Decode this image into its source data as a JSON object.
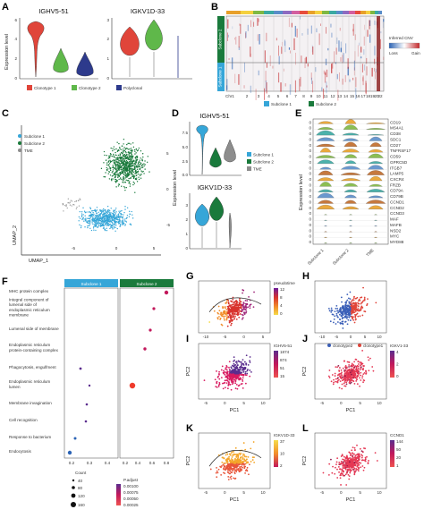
{
  "figure": {
    "panel_labels": [
      "A",
      "B",
      "C",
      "D",
      "E",
      "F",
      "G",
      "H",
      "I",
      "J",
      "K",
      "L"
    ],
    "panelA": {
      "genes": [
        "IGHV5-51",
        "IGKV1D-33"
      ],
      "ylabel": "Expression level",
      "yticks_left": [
        "0",
        "2",
        "4",
        "6"
      ],
      "yticks_right": [
        "0",
        "1",
        "2",
        "3"
      ],
      "legend": [
        "Clonotype 1",
        "Clonotype 2",
        "Polyclonal"
      ],
      "colors": {
        "clonotype1": "#e0453a",
        "clonotype2": "#5fb84a",
        "polyclonal": "#2d3a8c"
      }
    },
    "panelB": {
      "row_labels": [
        "Subclone 2",
        "Subclone 1"
      ],
      "x_label": "Chr1",
      "chromosomes": [
        "2",
        "3",
        "4",
        "5",
        "6",
        "7",
        "8",
        "9",
        "10",
        "11",
        "12",
        "13",
        "14",
        "15",
        "16",
        "17",
        "18",
        "19",
        "20",
        "22"
      ],
      "legend_title": "Inferred CNV",
      "legend_loss": "Loss",
      "legend_gain": "Gain",
      "bottom_legend": [
        "Subclone 1",
        "Subclone 2"
      ],
      "colors": {
        "subclone1": "#36a6d8",
        "subclone2": "#1a7a3c"
      }
    },
    "panelC": {
      "legend": [
        "Subclone 1",
        "Subclone 2",
        "TME"
      ],
      "xlabel": "UMAP_1",
      "ylabel": "UMAP_2",
      "xticks": [
        "-5",
        "0",
        "5"
      ],
      "yticks": [
        "5",
        "0",
        "-5"
      ]
    },
    "panelD": {
      "genes": [
        "IGHV5-51",
        "IGKV1D-33"
      ],
      "ylabel": "Expression level",
      "yticks_top": [
        "0.0",
        "2.5",
        "5.0",
        "7.5"
      ],
      "yticks_bottom": [
        "0",
        "1",
        "2",
        "3"
      ],
      "legend": [
        "Subclone 1",
        "Subclone 2",
        "TME"
      ],
      "colors": {
        "subclone1": "#36a6d8",
        "subclone2": "#1a7a3c",
        "tme": "#8d8d8d"
      }
    },
    "panelE": {
      "genes": [
        "CD19",
        "MS4A1",
        "CD38",
        "SDC1",
        "CD27",
        "TNFRSF17",
        "CD59",
        "GPRC5D",
        "ITGB7",
        "LAMP5",
        "CXCR4",
        "FRZB",
        "CD79A",
        "CD79B",
        "CCND1",
        "CCND2",
        "CCND3",
        "MAF",
        "MAFB",
        "NSD2",
        "MYC",
        "MYD88"
      ],
      "ylabel": "Expression level",
      "xlabels": [
        "Subclone 1",
        "Subclone 2",
        "TME"
      ],
      "colors": [
        "#e8a02a",
        "#7fb842",
        "#3aa9a3",
        "#5a8dc9",
        "#c06b2a"
      ]
    },
    "panelF": {
      "headers": [
        "Subclone 1",
        "Subclone 2"
      ],
      "terms": [
        "MHC protein complex",
        "Integral component of lumenal side of endoplasmic reticulum membrane",
        "Lumenal side of membrane",
        "Endoplasmic reticulum protein-containing complex",
        "Phagocytosis, engulfment",
        "Endoplasmic reticulum lumen",
        "Membrane invagination",
        "Cell recognition",
        "Response to bacterium",
        "Endocytosis"
      ],
      "xticks1": [
        "0.2",
        "0.3",
        "0.4"
      ],
      "xticks2": [
        "0.2",
        "0.4",
        "0.6",
        "0.8"
      ],
      "size_title": "Count",
      "size_values": [
        "40",
        "80",
        "120",
        "160"
      ],
      "padj_title": "P.adjust",
      "padj_values": [
        "0.00100",
        "0.00075",
        "0.00050",
        "0.00025"
      ]
    },
    "panelG": {
      "legend_title": "pseudotime",
      "legend_values": [
        "12",
        "8",
        "4",
        "0"
      ],
      "xticks": [
        "-10",
        "-5",
        "0",
        "5"
      ]
    },
    "panelH": {
      "legend": [
        "clonotype2",
        "clonotype1"
      ],
      "xticks": [
        "-10",
        "-5",
        "0",
        "5",
        "10"
      ]
    },
    "panelI": {
      "gene": "IGHV5-51",
      "legend_values": [
        "1874",
        "874",
        "51",
        "15"
      ],
      "xlabel": "PC1",
      "ylabel": "PC2",
      "xticks": [
        "-5",
        "0",
        "5",
        "10"
      ]
    },
    "panelJ": {
      "gene": "IGKV1-33",
      "legend_values": [
        "4",
        "2",
        "0"
      ],
      "xlabel": "PC1",
      "ylabel": "PC2",
      "xticks": [
        "-5",
        "0",
        "5",
        "10"
      ]
    },
    "panelK": {
      "gene": "IGKV1D-33",
      "legend_values": [
        "37",
        "10",
        "2"
      ],
      "xlabel": "PC1",
      "ylabel": "PC2",
      "xticks": [
        "-5",
        "0",
        "5",
        "10"
      ]
    },
    "panelL": {
      "gene": "CCND1",
      "legend_values": [
        "144",
        "50",
        "20",
        "1"
      ],
      "xlabel": "PC1",
      "ylabel": "PC2",
      "xticks": [
        "-5",
        "0",
        "5",
        "10"
      ]
    }
  }
}
